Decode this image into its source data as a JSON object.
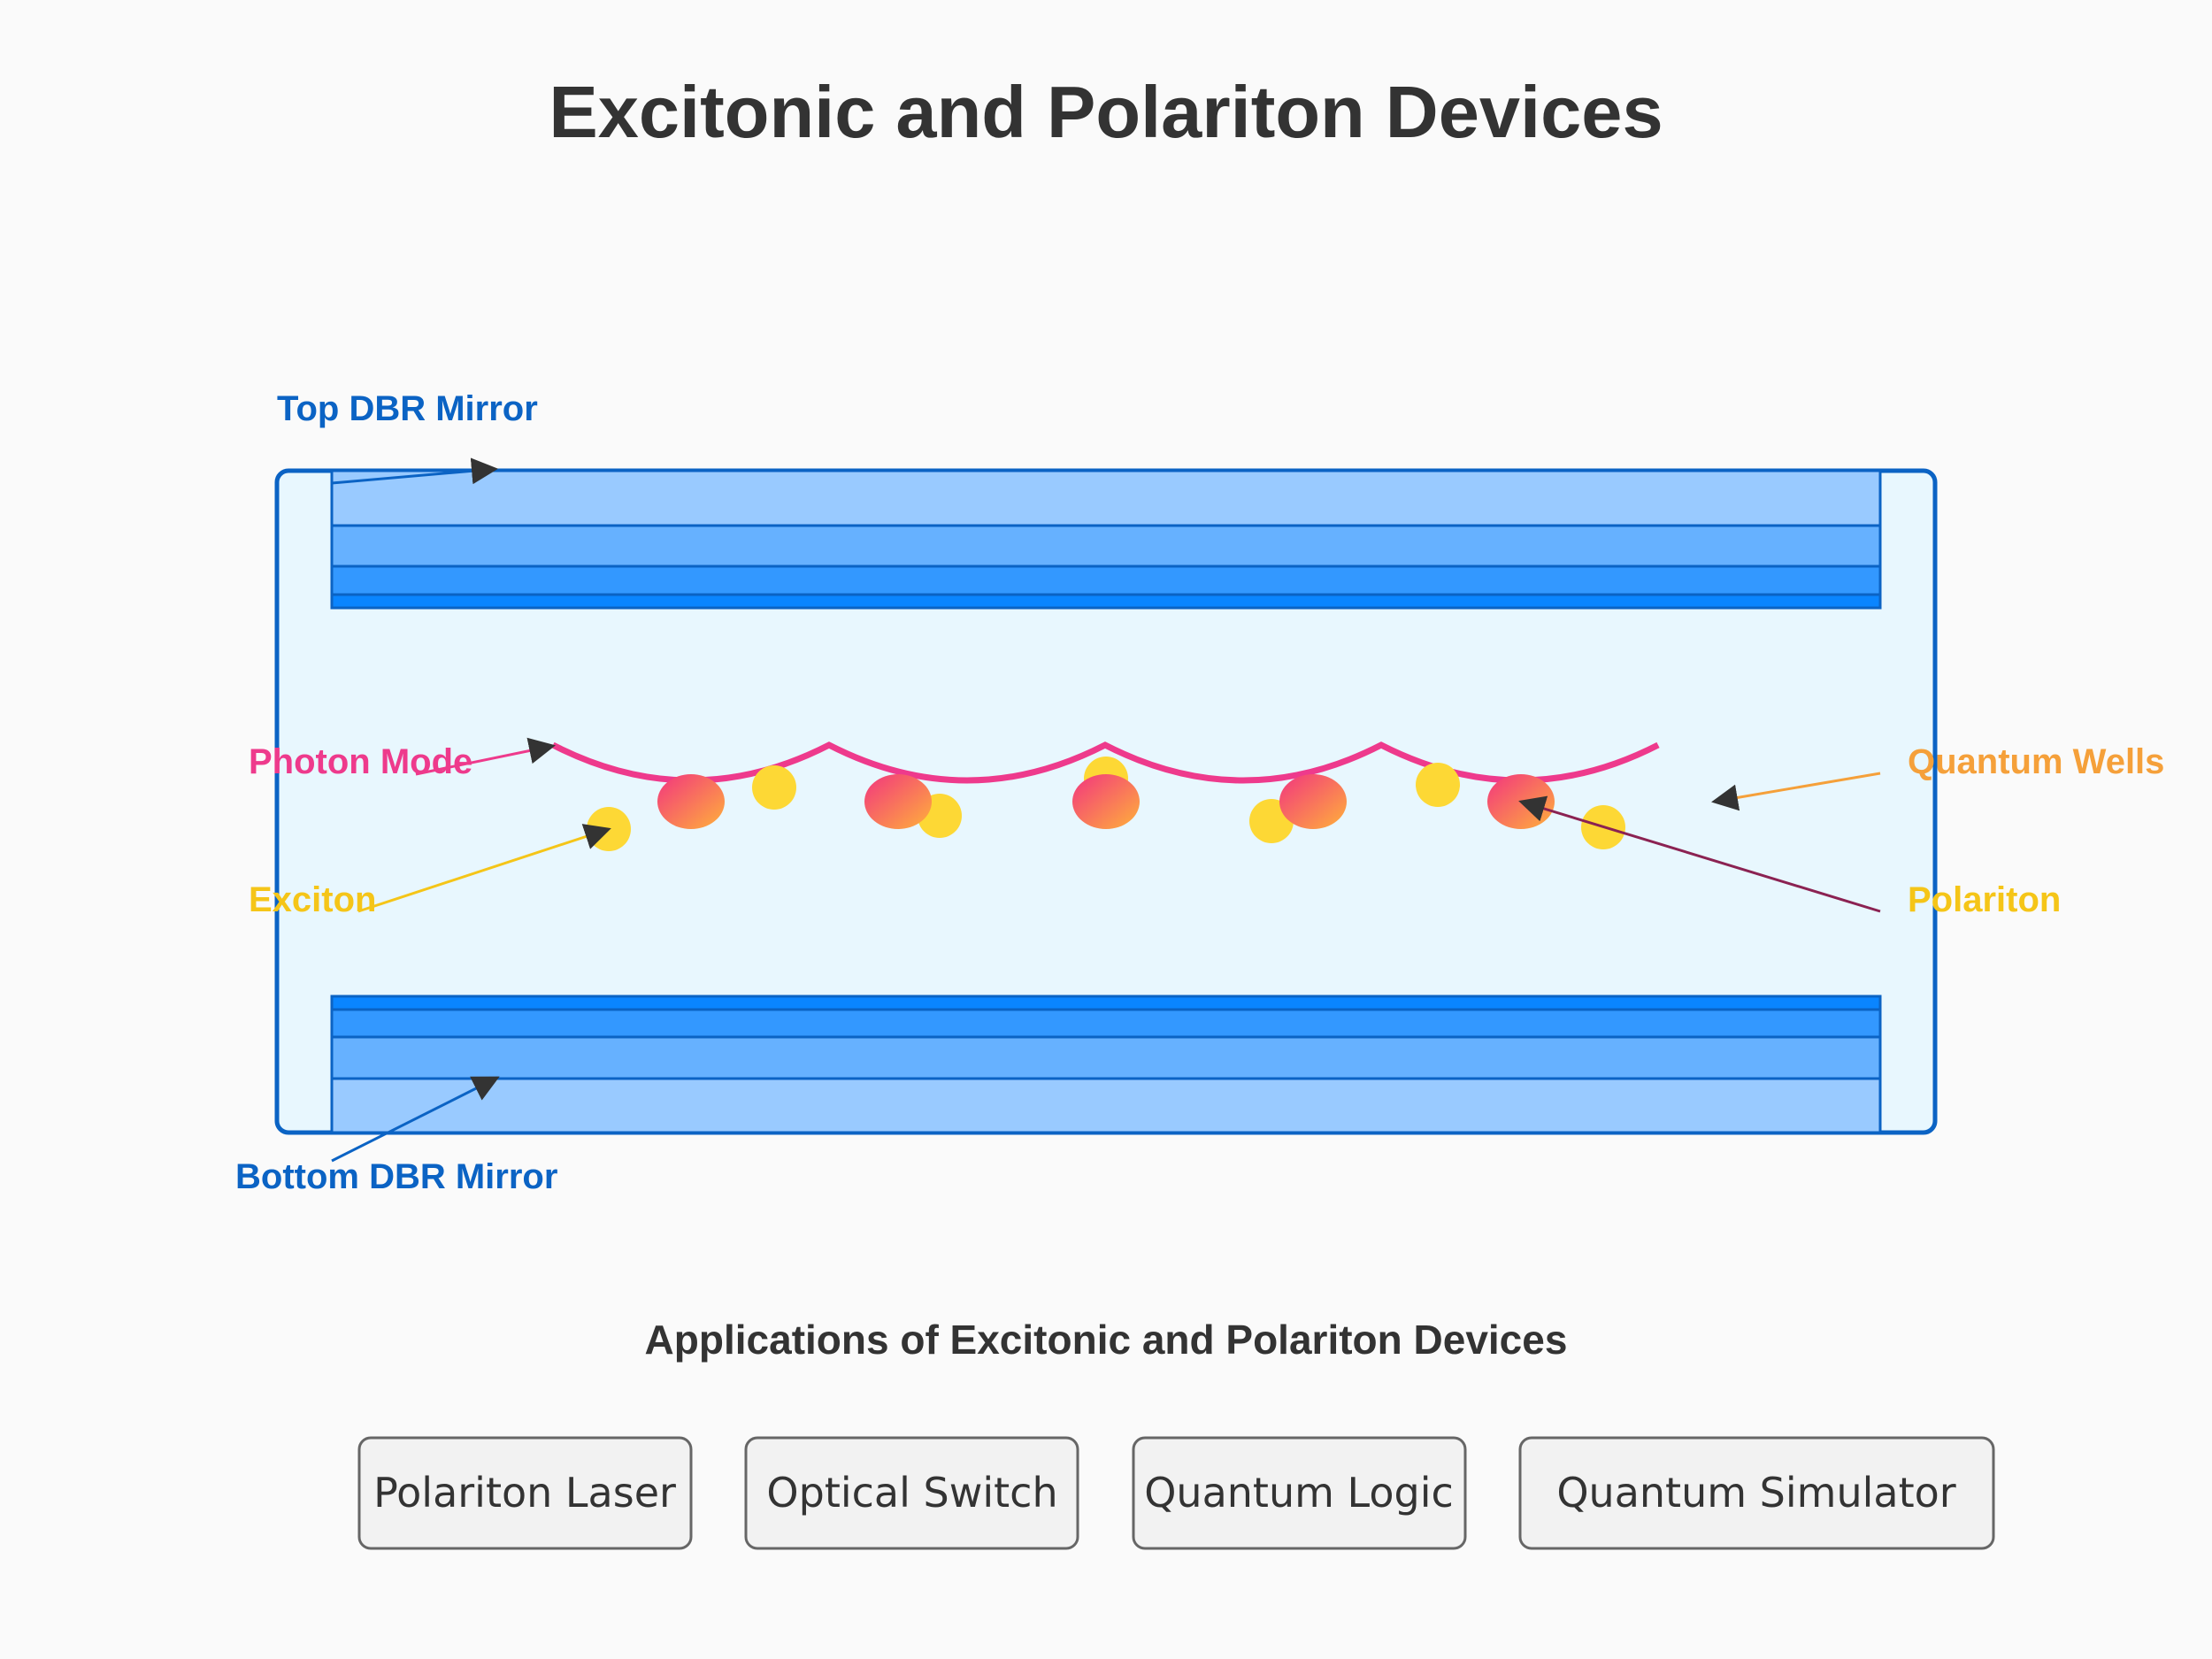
{
  "title": "Excitonic and Polariton Devices",
  "labels": {
    "top_mirror": "Top DBR Mirror",
    "bottom_mirror": "Bottom DBR Mirror",
    "photon_mode": "Photon Mode",
    "exciton": "Exciton",
    "quantum_wells": "Quantum Wells",
    "polariton": "Polariton"
  },
  "colors": {
    "mirror": "#0b63c4",
    "photon": "#ee3a8c",
    "exciton": "#f5c518",
    "quantum_wells": "#f5a03a",
    "polariton_arrow": "#8b2252",
    "cavity": "#e8f7fe"
  },
  "applications": {
    "heading": "Applications of Excitonic and Polariton Devices",
    "items": [
      {
        "label": "Polariton Laser"
      },
      {
        "label": "Optical Switch"
      },
      {
        "label": "Quantum Logic"
      },
      {
        "label": "Quantum Simulator"
      }
    ]
  }
}
